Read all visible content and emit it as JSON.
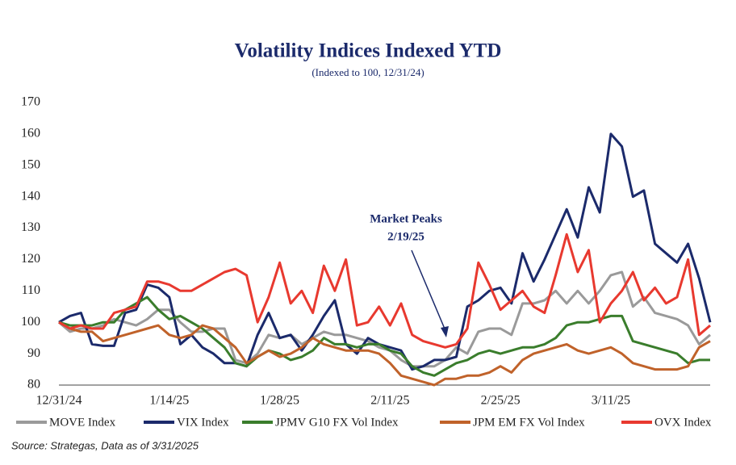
{
  "chart_data": {
    "type": "line",
    "title": "Volatility Indices Indexed YTD",
    "subtitle": "(Indexed to 100, 12/31/24)",
    "categories": [
      "12/31/24",
      null,
      null,
      null,
      null,
      null,
      null,
      null,
      null,
      null,
      "1/14/25",
      null,
      null,
      null,
      null,
      null,
      null,
      null,
      null,
      null,
      "1/28/25",
      null,
      null,
      null,
      null,
      null,
      null,
      null,
      null,
      null,
      "2/11/25",
      null,
      null,
      null,
      null,
      null,
      null,
      null,
      null,
      null,
      "2/25/25",
      null,
      null,
      null,
      null,
      null,
      null,
      null,
      null,
      null,
      "3/11/25",
      null,
      null,
      null,
      null,
      null,
      null,
      null,
      null,
      null
    ],
    "ylim": [
      80,
      170
    ],
    "yticks": [
      80,
      90,
      100,
      110,
      120,
      130,
      140,
      150,
      160,
      170
    ],
    "grid": false,
    "series": [
      {
        "name": "MOVE Index",
        "color": "#9a9a9a",
        "values": [
          100,
          97,
          98,
          98,
          99,
          101,
          100,
          99,
          101,
          104,
          104,
          100,
          97,
          97,
          98,
          98,
          88,
          87,
          90,
          96,
          95,
          96,
          93,
          95,
          97,
          96,
          96,
          95,
          94,
          92,
          91,
          88,
          86,
          86,
          86,
          88,
          92,
          90,
          97,
          98,
          98,
          96,
          106,
          106,
          107,
          110,
          106,
          110,
          106,
          110,
          115,
          116,
          105,
          108,
          103,
          102,
          101,
          99,
          93,
          96
        ]
      },
      {
        "name": "VIX Index",
        "color": "#1b2a6b",
        "values": [
          100,
          102,
          103,
          93,
          92.5,
          92.5,
          103,
          104,
          112,
          111,
          108,
          93,
          96,
          92,
          90,
          87,
          87,
          86,
          96,
          103,
          95,
          96,
          91,
          96,
          102,
          107,
          93,
          90,
          95,
          93,
          92,
          91,
          85,
          86,
          88,
          88,
          89,
          105,
          107,
          110,
          111,
          106,
          122,
          113,
          120,
          128,
          136,
          127,
          143,
          135,
          160,
          156,
          140,
          142,
          125,
          122,
          119,
          125,
          114,
          100
        ]
      },
      {
        "name": "JPMV G10 FX Vol Index",
        "color": "#3a7d2c",
        "values": [
          100,
          99,
          99,
          99,
          100,
          100,
          104,
          106,
          108,
          104,
          101,
          102,
          100,
          98,
          95,
          92,
          87,
          86,
          89,
          91,
          90,
          88,
          89,
          91,
          95,
          93,
          93,
          92,
          93,
          93,
          91,
          90,
          86,
          84,
          83,
          85,
          87,
          88,
          90,
          91,
          90,
          91,
          92,
          92,
          93,
          95,
          99,
          100,
          100,
          101,
          102,
          102,
          94,
          93,
          92,
          91,
          90,
          87,
          88,
          88
        ]
      },
      {
        "name": "JPM EM FX Vol Index",
        "color": "#c0622a",
        "values": [
          100,
          98,
          97,
          97,
          94,
          95,
          96,
          97,
          98,
          99,
          96,
          95,
          96,
          99,
          98,
          95,
          92,
          87,
          89,
          91,
          89,
          90,
          92,
          95,
          93,
          92,
          91,
          91,
          91,
          90,
          87,
          83,
          82,
          81,
          80,
          82,
          82,
          83,
          83,
          84,
          86,
          84,
          88,
          90,
          91,
          92,
          93,
          91,
          90,
          91,
          92,
          90,
          87,
          86,
          85,
          85,
          85,
          86,
          92,
          94
        ]
      },
      {
        "name": "OVX Index",
        "color": "#e8392f",
        "values": [
          100,
          98,
          99,
          98,
          98,
          103,
          104,
          105,
          113,
          113,
          112,
          110,
          110,
          112,
          114,
          116,
          117,
          115,
          100,
          108,
          119,
          106,
          110,
          103,
          118,
          110,
          120,
          99,
          100,
          105,
          99,
          106,
          96,
          94,
          93,
          92,
          93,
          98,
          119,
          112,
          104,
          107,
          110,
          105,
          103,
          115,
          128,
          116,
          123,
          100,
          106,
          110,
          116,
          107,
          111,
          106,
          108,
          120,
          96,
          99
        ]
      }
    ],
    "annotation": [
      "Market Peaks",
      "2/19/25"
    ],
    "source": "Source: Strategas, Data as of 3/31/2025"
  }
}
